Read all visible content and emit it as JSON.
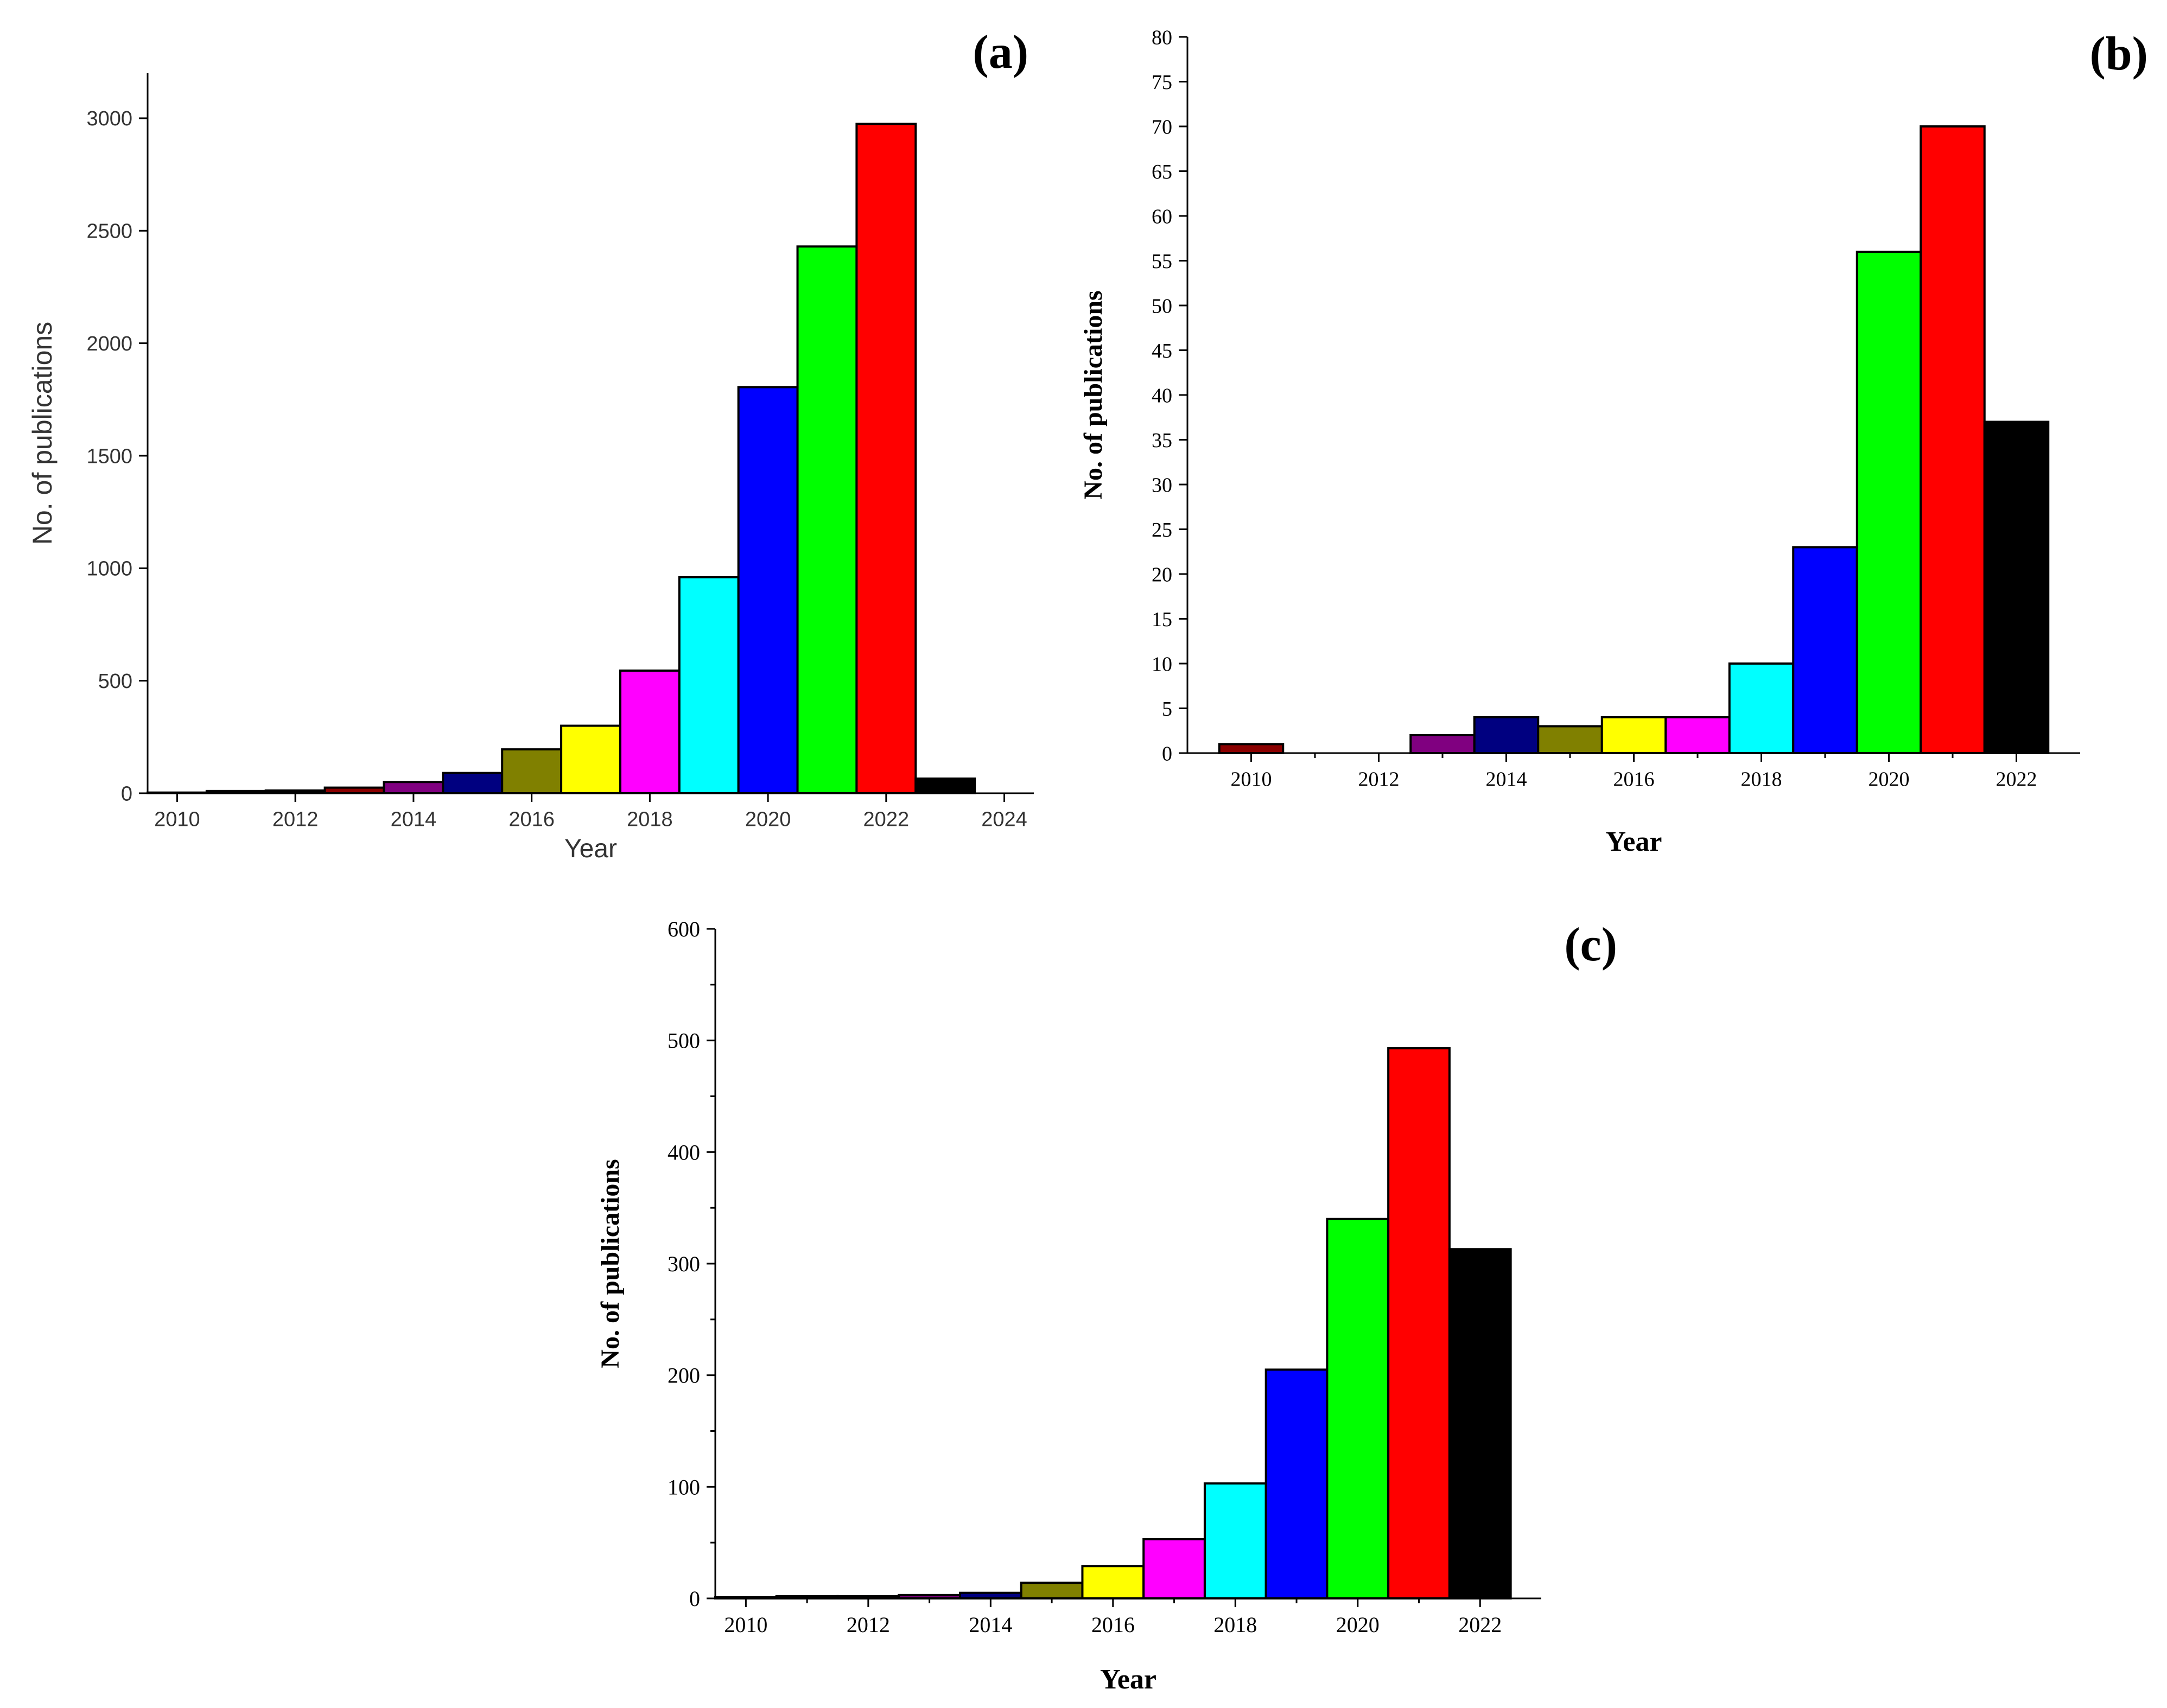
{
  "chart_data": [
    {
      "id": "a",
      "panel_label": "(a)",
      "type": "bar",
      "xlabel": "Year",
      "ylabel": "No. of publications",
      "x": [
        2010,
        2011,
        2012,
        2013,
        2014,
        2015,
        2016,
        2017,
        2018,
        2019,
        2020,
        2021,
        2022,
        2023
      ],
      "values": [
        3,
        10,
        12,
        25,
        50,
        90,
        195,
        300,
        545,
        960,
        1805,
        2430,
        2975,
        65
      ],
      "colors": [
        "#8B0000",
        "#000000",
        "#000000",
        "#8B0000",
        "#800080",
        "#000080",
        "#808000",
        "#FFFF00",
        "#FF00FF",
        "#00FFFF",
        "#0000FF",
        "#00FF00",
        "#FF0000",
        "#000000"
      ],
      "xticks": [
        "2010",
        "2012",
        "2014",
        "2016",
        "2018",
        "2020",
        "2022",
        "2024"
      ],
      "yticks": [
        "0",
        "500",
        "1000",
        "1500",
        "2000",
        "2500",
        "3000"
      ],
      "ylim": [
        0,
        3200
      ],
      "xlim": [
        2009.5,
        2024.5
      ]
    },
    {
      "id": "b",
      "panel_label": "(b)",
      "type": "bar",
      "xlabel": "Year",
      "ylabel": "No. of publications",
      "x": [
        2010,
        2011,
        2012,
        2013,
        2014,
        2015,
        2016,
        2017,
        2018,
        2019,
        2020,
        2021,
        2022
      ],
      "values": [
        1,
        0,
        0,
        2,
        4,
        3,
        4,
        4,
        10,
        23,
        56,
        70,
        37
      ],
      "colors": [
        "#8B0000",
        "#000000",
        "#000000",
        "#800080",
        "#000080",
        "#808000",
        "#FFFF00",
        "#FF00FF",
        "#00FFFF",
        "#0000FF",
        "#00FF00",
        "#FF0000",
        "#000000"
      ],
      "xticks": [
        "2010",
        "2012",
        "2014",
        "2016",
        "2018",
        "2020",
        "2022"
      ],
      "yticks": [
        "0",
        "5",
        "10",
        "15",
        "20",
        "25",
        "30",
        "35",
        "40",
        "45",
        "50",
        "55",
        "60",
        "65",
        "70",
        "75",
        "80"
      ],
      "ylim": [
        0,
        80
      ],
      "xlim": [
        2009,
        2023
      ]
    },
    {
      "id": "c",
      "panel_label": "(c)",
      "type": "bar",
      "xlabel": "Year",
      "ylabel": "No. of publications",
      "x": [
        2010,
        2011,
        2012,
        2013,
        2014,
        2015,
        2016,
        2017,
        2018,
        2019,
        2020,
        2021,
        2022
      ],
      "values": [
        1,
        2,
        2,
        3,
        5,
        14,
        29,
        53,
        103,
        205,
        340,
        493,
        313
      ],
      "colors": [
        "#000000",
        "#000000",
        "#8B0000",
        "#800080",
        "#000080",
        "#808000",
        "#FFFF00",
        "#FF00FF",
        "#00FFFF",
        "#0000FF",
        "#00FF00",
        "#FF0000",
        "#000000"
      ],
      "xticks": [
        "2010",
        "2012",
        "2014",
        "2016",
        "2018",
        "2020",
        "2022"
      ],
      "yticks": [
        "0",
        "100",
        "200",
        "300",
        "400",
        "500",
        "600"
      ],
      "ylim": [
        0,
        600
      ],
      "xlim": [
        2009.5,
        2023
      ]
    }
  ]
}
